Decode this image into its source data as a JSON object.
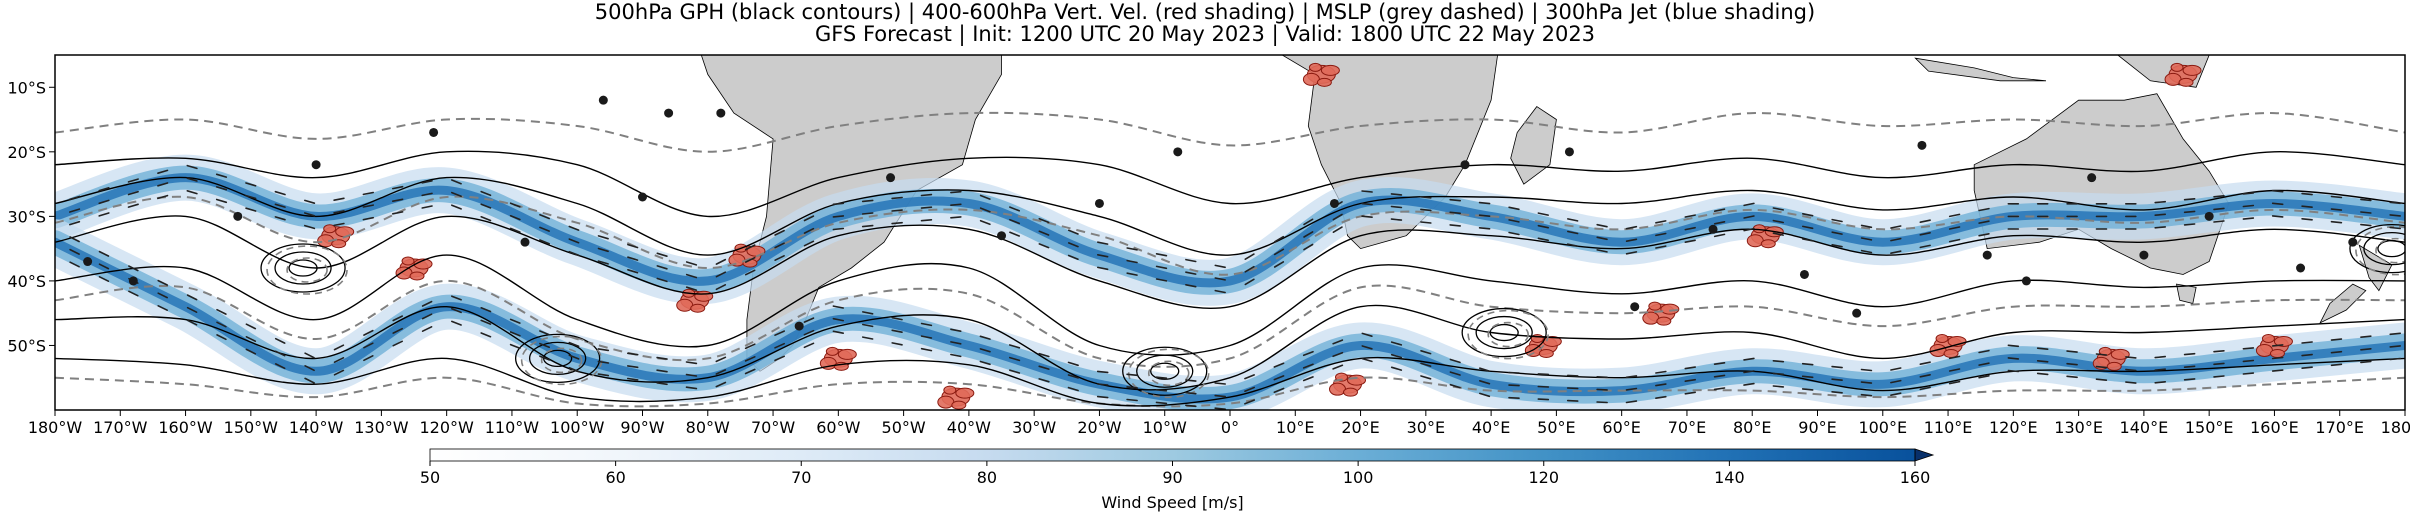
{
  "title_line1": "500hPa GPH (black contours) | 400-600hPa Vert. Vel. (red shading) | MSLP (grey dashed) | 300hPa Jet (blue shading)",
  "title_line2": "GFS Forecast | Init: 1200 UTC 20 May 2023 | Valid: 1800 UTC 22 May 2023",
  "map": {
    "lon_range": [
      -180,
      180
    ],
    "lat_range": [
      -60,
      -5
    ],
    "lon_ticks": [
      {
        "lon": -180,
        "label": "180°W"
      },
      {
        "lon": -170,
        "label": "170°W"
      },
      {
        "lon": -160,
        "label": "160°W"
      },
      {
        "lon": -150,
        "label": "150°W"
      },
      {
        "lon": -140,
        "label": "140°W"
      },
      {
        "lon": -130,
        "label": "130°W"
      },
      {
        "lon": -120,
        "label": "120°W"
      },
      {
        "lon": -110,
        "label": "110°W"
      },
      {
        "lon": -100,
        "label": "100°W"
      },
      {
        "lon": -90,
        "label": "90°W"
      },
      {
        "lon": -80,
        "label": "80°W"
      },
      {
        "lon": -70,
        "label": "70°W"
      },
      {
        "lon": -60,
        "label": "60°W"
      },
      {
        "lon": -50,
        "label": "50°W"
      },
      {
        "lon": -40,
        "label": "40°W"
      },
      {
        "lon": -30,
        "label": "30°W"
      },
      {
        "lon": -20,
        "label": "20°W"
      },
      {
        "lon": -10,
        "label": "10°W"
      },
      {
        "lon": 0,
        "label": "0°"
      },
      {
        "lon": 10,
        "label": "10°E"
      },
      {
        "lon": 20,
        "label": "20°E"
      },
      {
        "lon": 30,
        "label": "30°E"
      },
      {
        "lon": 40,
        "label": "40°E"
      },
      {
        "lon": 50,
        "label": "50°E"
      },
      {
        "lon": 60,
        "label": "60°E"
      },
      {
        "lon": 70,
        "label": "70°E"
      },
      {
        "lon": 80,
        "label": "80°E"
      },
      {
        "lon": 90,
        "label": "90°E"
      },
      {
        "lon": 100,
        "label": "100°E"
      },
      {
        "lon": 110,
        "label": "110°E"
      },
      {
        "lon": 120,
        "label": "120°E"
      },
      {
        "lon": 130,
        "label": "130°E"
      },
      {
        "lon": 140,
        "label": "140°E"
      },
      {
        "lon": 150,
        "label": "150°E"
      },
      {
        "lon": 160,
        "label": "160°E"
      },
      {
        "lon": 170,
        "label": "170°E"
      },
      {
        "lon": 180,
        "label": "180°E"
      }
    ],
    "lat_ticks": [
      {
        "lat": -10,
        "label": "10°S"
      },
      {
        "lat": -20,
        "label": "20°S"
      },
      {
        "lat": -30,
        "label": "30°S"
      },
      {
        "lat": -40,
        "label": "40°S"
      },
      {
        "lat": -50,
        "label": "50°S"
      }
    ],
    "gph_contours": [
      {
        "lats": [
          -22,
          -21,
          -24,
          -20,
          -22,
          -30,
          -24,
          -21,
          -22,
          -28,
          -24,
          -22,
          -23,
          -21,
          -24,
          -22,
          -23,
          -20,
          -22
        ]
      },
      {
        "lats": [
          -28,
          -24,
          -30,
          -24,
          -28,
          -36,
          -28,
          -26,
          -30,
          -36,
          -28,
          -27,
          -28,
          -26,
          -29,
          -27,
          -29,
          -26,
          -28
        ]
      },
      {
        "lats": [
          -34,
          -30,
          -38,
          -30,
          -36,
          -42,
          -33,
          -32,
          -40,
          -44,
          -33,
          -33,
          -35,
          -32,
          -36,
          -33,
          -34,
          -32,
          -34
        ]
      },
      {
        "lats": [
          -40,
          -38,
          -46,
          -36,
          -46,
          -50,
          -40,
          -38,
          -50,
          -50,
          -38,
          -40,
          -42,
          -40,
          -44,
          -40,
          -41,
          -40,
          -40
        ]
      },
      {
        "lats": [
          -46,
          -46,
          -52,
          -44,
          -54,
          -55,
          -47,
          -46,
          -56,
          -55,
          -44,
          -48,
          -49,
          -48,
          -52,
          -48,
          -48,
          -47,
          -46
        ]
      },
      {
        "lats": [
          -52,
          -53,
          -56,
          -52,
          -58,
          -58,
          -53,
          -53,
          -59,
          -58,
          -52,
          -54,
          -55,
          -54,
          -57,
          -54,
          -54,
          -53,
          -52
        ]
      }
    ],
    "mslp_contours": [
      {
        "lats": [
          -17,
          -15,
          -18,
          -15,
          -16,
          -20,
          -16,
          -14,
          -15,
          -19,
          -16,
          -15,
          -17,
          -14,
          -16,
          -15,
          -16,
          -14,
          -17
        ]
      },
      {
        "lats": [
          -31,
          -27,
          -34,
          -27,
          -31,
          -38,
          -31,
          -29,
          -33,
          -39,
          -30,
          -30,
          -32,
          -29,
          -32,
          -30,
          -31,
          -29,
          -31
        ]
      },
      {
        "lats": [
          -43,
          -41,
          -49,
          -40,
          -49,
          -52,
          -43,
          -42,
          -52,
          -52,
          -41,
          -44,
          -45,
          -44,
          -47,
          -44,
          -44,
          -43,
          -43
        ]
      },
      {
        "lats": [
          -55,
          -56,
          -58,
          -55,
          -59,
          -59,
          -56,
          -56,
          -59,
          -59,
          -55,
          -57,
          -57,
          -57,
          -58,
          -57,
          -57,
          -56,
          -55
        ]
      }
    ],
    "closed_lows": [
      {
        "lon": -142,
        "lat": -38
      },
      {
        "lon": -103,
        "lat": -52
      },
      {
        "lon": -10,
        "lat": -54
      },
      {
        "lon": 42,
        "lat": -48
      },
      {
        "lon": 178,
        "lat": -35
      }
    ],
    "jet_axes": [
      {
        "lats": [
          -30,
          -24,
          -30,
          -26,
          -34,
          -40,
          -30,
          -28,
          -36,
          -40,
          -28,
          -30,
          -34,
          -30,
          -34,
          -30,
          -30,
          -28,
          -30
        ]
      },
      {
        "lats": [
          -34,
          -44,
          -54,
          -44,
          -52,
          -55,
          -46,
          -50,
          -56,
          -58,
          -50,
          -56,
          -57,
          -54,
          -56,
          -52,
          -54,
          -52,
          -50
        ]
      }
    ],
    "ascent_regions": [
      {
        "lon": -137,
        "lat": -33
      },
      {
        "lon": -125,
        "lat": -38
      },
      {
        "lon": -82,
        "lat": -43
      },
      {
        "lon": -74,
        "lat": -36
      },
      {
        "lon": -60,
        "lat": -52
      },
      {
        "lon": -42,
        "lat": -58
      },
      {
        "lon": 18,
        "lat": -56
      },
      {
        "lon": 48,
        "lat": -50
      },
      {
        "lon": 66,
        "lat": -45
      },
      {
        "lon": 82,
        "lat": -33
      },
      {
        "lon": 110,
        "lat": -50
      },
      {
        "lon": 135,
        "lat": -52
      },
      {
        "lon": 160,
        "lat": -50
      },
      {
        "lon": 14,
        "lat": -8
      },
      {
        "lon": 146,
        "lat": -8
      }
    ],
    "stations": [
      {
        "lon": -175,
        "lat": -37
      },
      {
        "lon": -168,
        "lat": -40
      },
      {
        "lon": -152,
        "lat": -30
      },
      {
        "lon": -140,
        "lat": -22
      },
      {
        "lon": -122,
        "lat": -17
      },
      {
        "lon": -108,
        "lat": -34
      },
      {
        "lon": -96,
        "lat": -12
      },
      {
        "lon": -90,
        "lat": -27
      },
      {
        "lon": -86,
        "lat": -14
      },
      {
        "lon": -78,
        "lat": -14
      },
      {
        "lon": -66,
        "lat": -47
      },
      {
        "lon": -52,
        "lat": -24
      },
      {
        "lon": -35,
        "lat": -33
      },
      {
        "lon": -20,
        "lat": -28
      },
      {
        "lon": -8,
        "lat": -20
      },
      {
        "lon": 16,
        "lat": -28
      },
      {
        "lon": 36,
        "lat": -22
      },
      {
        "lon": 52,
        "lat": -20
      },
      {
        "lon": 62,
        "lat": -44
      },
      {
        "lon": 74,
        "lat": -32
      },
      {
        "lon": 88,
        "lat": -39
      },
      {
        "lon": 96,
        "lat": -45
      },
      {
        "lon": 116,
        "lat": -36
      },
      {
        "lon": 122,
        "lat": -40
      },
      {
        "lon": 132,
        "lat": -24
      },
      {
        "lon": 140,
        "lat": -36
      },
      {
        "lon": 150,
        "lat": -30
      },
      {
        "lon": 164,
        "lat": -38
      },
      {
        "lon": 172,
        "lat": -34
      },
      {
        "lon": 106,
        "lat": -19
      }
    ]
  },
  "colorbar": {
    "label": "Wind Speed [m/s]",
    "ticks": [
      50,
      60,
      70,
      80,
      90,
      100,
      120,
      140,
      160
    ],
    "colors": [
      "#ffffff",
      "#f1f6fb",
      "#deebf7",
      "#c6dbef",
      "#9ecae1",
      "#6baed6",
      "#4292c6",
      "#2171b5",
      "#08519c",
      "#08306b"
    ],
    "extend": "max"
  },
  "colors": {
    "land": "#cccccc",
    "coast": "#000000",
    "gph": "#000000",
    "mslp": "#808080",
    "jet_light": "#c6dbef",
    "jet_core": "#2171b5",
    "ascent_fill": "#e06a5a",
    "ascent_edge": "#8b1a10",
    "arrow": "#222222"
  }
}
